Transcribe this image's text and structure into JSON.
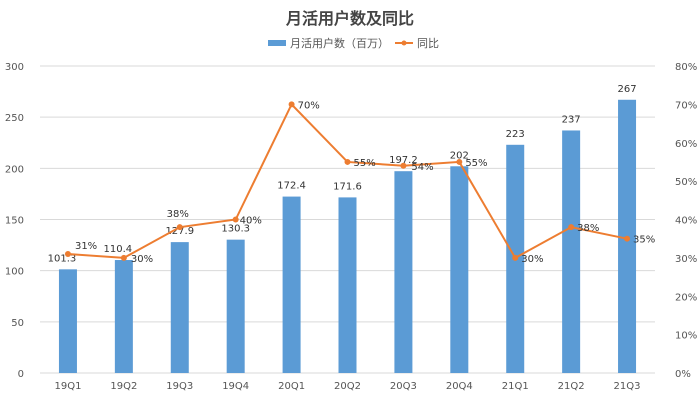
{
  "chart_data": {
    "type": "bar",
    "title": "月活用户数及同比",
    "categories": [
      "19Q1",
      "19Q2",
      "19Q3",
      "19Q4",
      "20Q1",
      "20Q2",
      "20Q3",
      "20Q4",
      "21Q1",
      "21Q2",
      "21Q3"
    ],
    "series": [
      {
        "name": "月活用户数（百万）",
        "type": "bar",
        "axis": "left",
        "color": "#5b9bd5",
        "values": [
          101.3,
          110.4,
          127.9,
          130.3,
          172.4,
          171.6,
          197.2,
          202,
          223,
          237,
          267
        ],
        "labels": [
          "101.3",
          "110.4",
          "127.9",
          "130.3",
          "172.4",
          "171.6",
          "197.2",
          "202",
          "223",
          "237",
          "267"
        ]
      },
      {
        "name": "同比",
        "type": "line",
        "axis": "right",
        "color": "#ed7d31",
        "values": [
          31,
          30,
          38,
          40,
          70,
          55,
          54,
          55,
          30,
          38,
          35
        ],
        "labels": [
          "31%",
          "30%",
          "38%",
          "40%",
          "70%",
          "55%",
          "54%",
          "55%",
          "30%",
          "38%",
          "35%"
        ]
      }
    ],
    "y_left": {
      "min": 0,
      "max": 300,
      "ticks": [
        "0",
        "50",
        "100",
        "150",
        "200",
        "250",
        "300"
      ]
    },
    "y_right": {
      "min": 0,
      "max": 80,
      "ticks": [
        "0%",
        "10%",
        "20%",
        "30%",
        "40%",
        "50%",
        "60%",
        "70%",
        "80%"
      ]
    },
    "grid": true,
    "legend_position": "top"
  }
}
